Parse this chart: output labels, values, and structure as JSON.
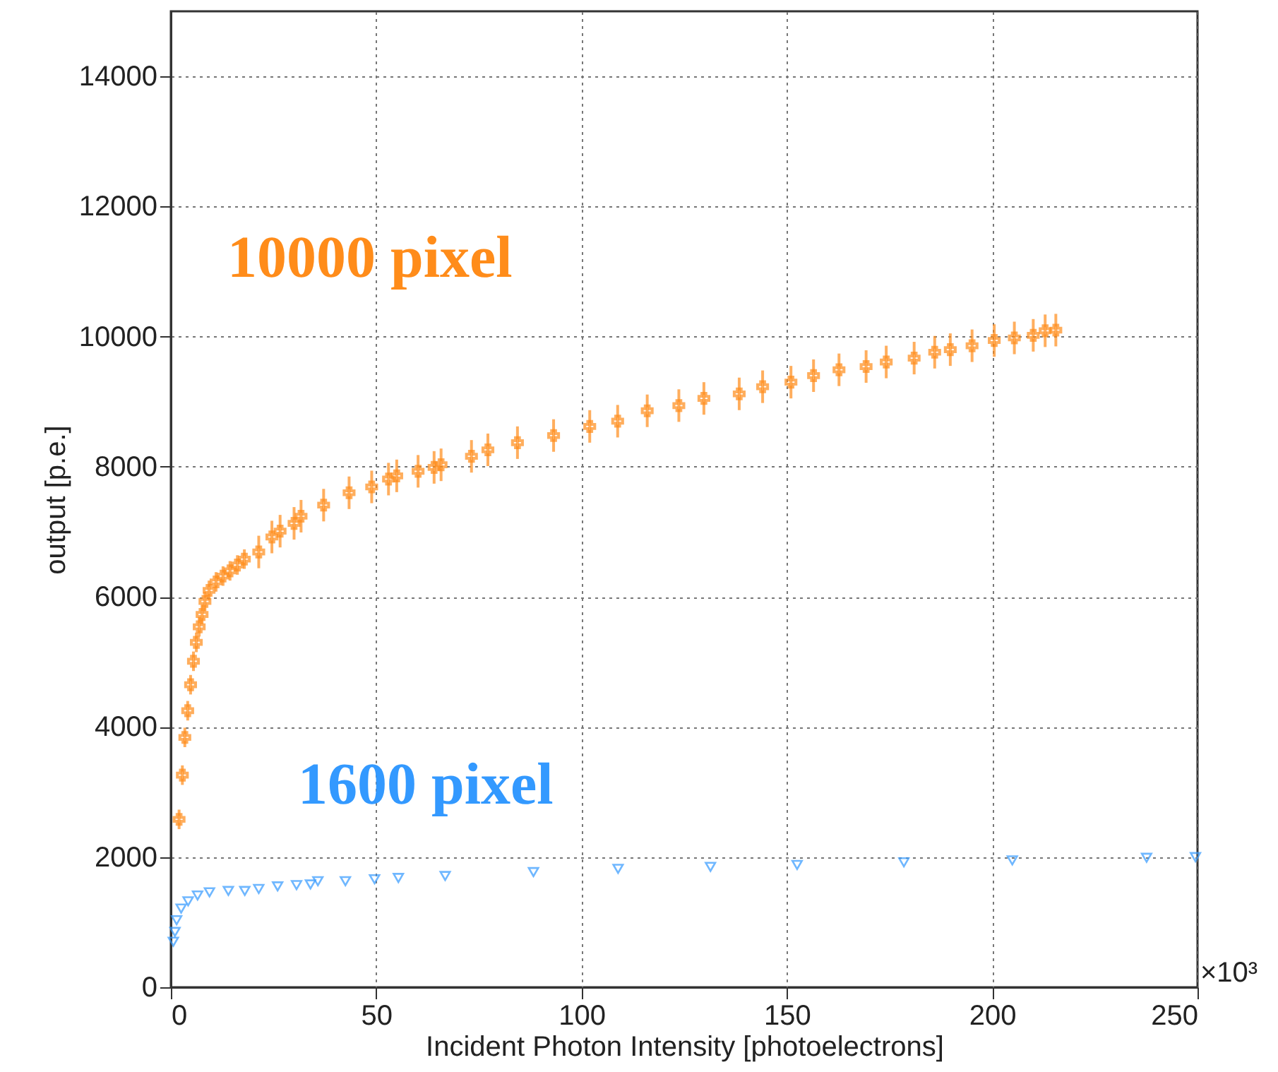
{
  "chart_data": {
    "type": "scatter",
    "xlabel": "Incident Photon Intensity [photoelectrons]",
    "ylabel": "output [p.e.]",
    "annotations": [
      "×10³"
    ],
    "xlim": [
      0,
      250
    ],
    "xticks": [
      0,
      50,
      100,
      150,
      200,
      250
    ],
    "ylim": [
      0,
      15000
    ],
    "yticks": [
      0,
      2000,
      4000,
      6000,
      8000,
      10000,
      12000,
      14000
    ],
    "grid": true,
    "series": [
      {
        "name": "10000 pixel",
        "color": "#ff8c1a",
        "marker": "cross",
        "x": [
          2,
          2.8,
          3.4,
          4.1,
          4.8,
          5.5,
          6.2,
          6.9,
          7.6,
          8.3,
          9.3,
          11,
          12.7,
          14.4,
          16.2,
          17.9,
          21.4,
          24.6,
          26.6,
          30,
          31.7,
          37.2,
          43.4,
          48.9,
          53,
          55,
          60.2,
          64.1,
          65.8,
          73.2,
          77.2,
          84.4,
          93.2,
          102,
          108.8,
          116,
          123.7,
          129.8,
          138.4,
          144.1,
          151,
          156.5,
          162.7,
          169.3,
          174.2,
          181,
          186,
          189.8,
          195.1,
          200.5,
          205.4,
          210,
          212.9,
          215.5
        ],
        "values": [
          2580,
          3260,
          3840,
          4250,
          4650,
          5010,
          5300,
          5540,
          5730,
          5930,
          6100,
          6230,
          6320,
          6400,
          6490,
          6580,
          6690,
          6920,
          7010,
          7130,
          7240,
          7410,
          7600,
          7690,
          7810,
          7860,
          7930,
          7990,
          8030,
          8160,
          8260,
          8370,
          8480,
          8620,
          8700,
          8860,
          8940,
          9050,
          9120,
          9230,
          9300,
          9400,
          9490,
          9540,
          9610,
          9670,
          9760,
          9800,
          9860,
          9940,
          9980,
          10020,
          10090,
          10100
        ],
        "errors": [
          150,
          150,
          150,
          150,
          150,
          150,
          150,
          150,
          150,
          150,
          150,
          150,
          150,
          150,
          150,
          150,
          250,
          250,
          250,
          250,
          250,
          250,
          250,
          250,
          250,
          250,
          250,
          250,
          250,
          250,
          250,
          250,
          250,
          250,
          250,
          250,
          250,
          250,
          250,
          250,
          250,
          250,
          250,
          250,
          250,
          250,
          250,
          250,
          250,
          250,
          250,
          250,
          250,
          250
        ]
      },
      {
        "name": "1600 pixel",
        "color": "#3399ff",
        "marker": "triangle",
        "x": [
          0.6,
          1,
          1.4,
          2.5,
          4.2,
          6.5,
          9.4,
          14,
          18,
          21.4,
          26,
          30.6,
          34,
          35.8,
          42.5,
          49.6,
          55.4,
          66.8,
          88.3,
          108.9,
          131.4,
          152.5,
          178.5,
          204.9,
          237.6,
          249.5
        ],
        "values": [
          700,
          850,
          1030,
          1210,
          1320,
          1410,
          1460,
          1480,
          1480,
          1510,
          1550,
          1570,
          1580,
          1630,
          1630,
          1660,
          1680,
          1710,
          1770,
          1820,
          1850,
          1880,
          1920,
          1950,
          1990,
          2000
        ]
      }
    ]
  }
}
